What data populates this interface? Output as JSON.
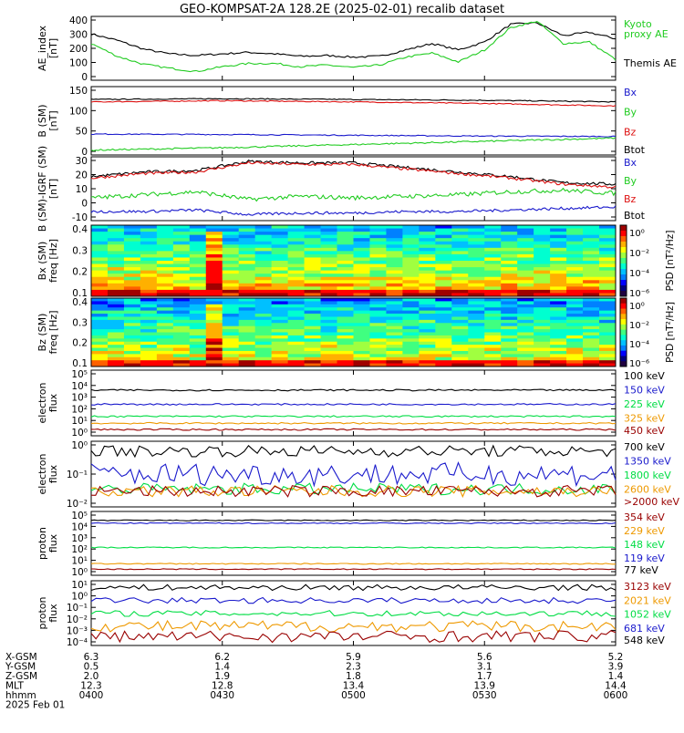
{
  "title": "GEO-KOMPSAT-2A 128.2E (2025-02-01) recalib dataset",
  "colors": {
    "black": "#000000",
    "green": "#22cc22",
    "blue": "#1a1acc",
    "red": "#dd1111",
    "orange": "#ee9900",
    "darkred": "#990000",
    "brightgreen": "#00dd44"
  },
  "panels": [
    {
      "id": "ae",
      "ylabel": [
        "AE_index",
        "[nT]"
      ],
      "ticks": [
        "400",
        "300",
        "200",
        "100",
        "0"
      ],
      "legend": [
        {
          "text": "Kyoto",
          "color": "green"
        },
        {
          "text": "proxy AE",
          "color": "green"
        },
        {
          "text": "Themis AE",
          "color": "black"
        }
      ]
    },
    {
      "id": "bsm",
      "ylabel": [
        "B (SM)",
        "[nT]"
      ],
      "ticks": [
        "150",
        "100",
        "50",
        "0"
      ],
      "legend": [
        {
          "text": "Bx",
          "color": "blue"
        },
        {
          "text": "By",
          "color": "green"
        },
        {
          "text": "Bz",
          "color": "red"
        },
        {
          "text": "Btot",
          "color": "black"
        }
      ]
    },
    {
      "id": "bigrf",
      "ylabel": [
        "B (SM)-IGRF (SM)",
        "[nT]"
      ],
      "ticks": [
        "30",
        "20",
        "10",
        "0",
        "-10"
      ],
      "legend": [
        {
          "text": "Bx",
          "color": "blue"
        },
        {
          "text": "By",
          "color": "green"
        },
        {
          "text": "Bz",
          "color": "red"
        },
        {
          "text": "Btot",
          "color": "black"
        }
      ]
    },
    {
      "id": "specbx",
      "ylabel": [
        "Bx (SM)",
        "freq [Hz]"
      ],
      "ticks": [
        "0.4",
        "0.3",
        "0.2",
        "0.1"
      ],
      "cbar_label": "PSD [nT²/Hz]",
      "cbar_ticks": [
        "10⁰",
        "10⁻²",
        "10⁻⁴",
        "10⁻⁶"
      ]
    },
    {
      "id": "specbz",
      "ylabel": [
        "Bz (SM)",
        "freq [Hz]"
      ],
      "ticks": [
        "0.4",
        "0.3",
        "0.2",
        "0.1"
      ],
      "cbar_label": "PSD [nT²/Hz]",
      "cbar_ticks": [
        "10⁰",
        "10⁻²",
        "10⁻⁴",
        "10⁻⁶"
      ]
    },
    {
      "id": "elow",
      "ylabel": [
        "electron",
        "flux"
      ],
      "ticks": [
        "10⁵",
        "10⁴",
        "10³",
        "10²",
        "10¹",
        "10⁰"
      ],
      "legend": [
        {
          "text": "100 keV",
          "color": "black"
        },
        {
          "text": "150 keV",
          "color": "blue"
        },
        {
          "text": "225 keV",
          "color": "brightgreen"
        },
        {
          "text": "325 keV",
          "color": "orange"
        },
        {
          "text": "450 keV",
          "color": "darkred"
        }
      ]
    },
    {
      "id": "ehigh",
      "ylabel": [
        "electron",
        "flux"
      ],
      "ticks": [
        "10⁰",
        "10⁻¹",
        "10⁻²"
      ],
      "legend": [
        {
          "text": "700 keV",
          "color": "black"
        },
        {
          "text": "1350 keV",
          "color": "blue"
        },
        {
          "text": "1800 keV",
          "color": "brightgreen"
        },
        {
          "text": "2600 keV",
          "color": "orange"
        },
        {
          "text": ">2000 keV",
          "color": "darkred"
        }
      ]
    },
    {
      "id": "plow",
      "ylabel": [
        "proton",
        "flux"
      ],
      "ticks": [
        "10⁵",
        "10⁴",
        "10³",
        "10²",
        "10¹",
        "10⁰"
      ],
      "legend": [
        {
          "text": "354 keV",
          "color": "darkred"
        },
        {
          "text": "229 keV",
          "color": "orange"
        },
        {
          "text": "148 keV",
          "color": "brightgreen"
        },
        {
          "text": "119 keV",
          "color": "blue"
        },
        {
          "text": "77 keV",
          "color": "black"
        }
      ]
    },
    {
      "id": "phigh",
      "ylabel": [
        "proton",
        "flux"
      ],
      "ticks": [
        "10¹",
        "10⁰",
        "10⁻¹",
        "10⁻²",
        "10⁻³",
        "10⁻⁴"
      ],
      "legend": [
        {
          "text": "3123 keV",
          "color": "darkred"
        },
        {
          "text": "2021 keV",
          "color": "orange"
        },
        {
          "text": "1052 keV",
          "color": "brightgreen"
        },
        {
          "text": "681 keV",
          "color": "blue"
        },
        {
          "text": "548 keV",
          "color": "black"
        }
      ]
    }
  ],
  "footer": {
    "rows": [
      {
        "label": "X-GSM",
        "values": [
          "6.3",
          "6.2",
          "5.9",
          "5.6",
          "5.2"
        ]
      },
      {
        "label": "Y-GSM",
        "values": [
          "0.5",
          "1.4",
          "2.3",
          "3.1",
          "3.9"
        ]
      },
      {
        "label": "Z-GSM",
        "values": [
          "2.0",
          "1.9",
          "1.8",
          "1.7",
          "1.4"
        ]
      },
      {
        "label": "MLT",
        "values": [
          "12.3",
          "12.8",
          "13.4",
          "13.9",
          "14.4"
        ]
      },
      {
        "label": "hhmm",
        "values": [
          "0400",
          "0430",
          "0500",
          "0530",
          "0600"
        ]
      }
    ],
    "date": "2025 Feb 01"
  },
  "chart_data": {
    "type": "line",
    "title": "GEO-KOMPSAT-2A 128.2E (2025-02-01) recalib dataset",
    "x_ticks": [
      "0400",
      "0430",
      "0500",
      "0530",
      "0600"
    ],
    "panels": [
      {
        "id": "ae",
        "ylim": [
          0,
          400
        ],
        "scale": "linear",
        "series": [
          {
            "name": "Themis AE",
            "color": "black",
            "x": [
              4.0,
              4.1,
              4.2,
              4.3,
              4.4,
              4.5,
              4.6,
              4.7,
              4.8,
              4.9,
              5.0,
              5.1,
              5.2,
              5.3,
              5.4,
              5.5,
              5.6,
              5.7,
              5.8,
              5.9,
              6.0
            ],
            "y": [
              290,
              250,
              195,
              165,
              155,
              165,
              175,
              165,
              150,
              155,
              145,
              150,
              190,
              230,
              190,
              240,
              350,
              360,
              280,
              300,
              260
            ]
          },
          {
            "name": "proxy AE",
            "color": "green",
            "x": [
              4.0,
              4.1,
              4.2,
              4.3,
              4.4,
              4.5,
              4.6,
              4.7,
              4.8,
              4.9,
              5.0,
              5.1,
              5.2,
              5.3,
              5.4,
              5.5,
              5.6,
              5.7,
              5.8,
              5.9,
              6.0
            ],
            "y": [
              230,
              150,
              100,
              75,
              55,
              85,
              105,
              105,
              85,
              95,
              80,
              95,
              145,
              170,
              115,
              190,
              330,
              370,
              230,
              240,
              130
            ]
          }
        ]
      },
      {
        "id": "bsm",
        "ylim": [
          -10,
          160
        ],
        "scale": "linear",
        "series": [
          {
            "name": "Btot",
            "color": "black",
            "x": [
              4.0,
              4.5,
              5.0,
              5.5,
              6.0
            ],
            "y": [
              128,
              130,
              128,
              126,
              122
            ]
          },
          {
            "name": "Bz",
            "color": "red",
            "x": [
              4.0,
              4.5,
              5.0,
              5.5,
              6.0
            ],
            "y": [
              122,
              125,
              122,
              118,
              112
            ]
          },
          {
            "name": "Bx",
            "color": "blue",
            "x": [
              4.0,
              4.5,
              5.0,
              5.5,
              6.0
            ],
            "y": [
              42,
              41,
              39,
              37,
              36
            ]
          },
          {
            "name": "By",
            "color": "green",
            "x": [
              4.0,
              4.5,
              5.0,
              5.5,
              6.0
            ],
            "y": [
              2,
              8,
              16,
              24,
              32
            ]
          }
        ]
      },
      {
        "id": "bigrf",
        "ylim": [
          -10,
          32
        ],
        "scale": "linear",
        "series": [
          {
            "name": "Btot",
            "color": "black",
            "x": [
              4.0,
              4.2,
              4.4,
              4.6,
              4.8,
              5.0,
              5.2,
              5.4,
              5.6,
              5.8,
              6.0
            ],
            "y": [
              19,
              22,
              23,
              29,
              28,
              28,
              25,
              22,
              19,
              15,
              14
            ]
          },
          {
            "name": "Bz",
            "color": "red",
            "x": [
              4.0,
              4.2,
              4.4,
              4.6,
              4.8,
              5.0,
              5.2,
              5.4,
              5.6,
              5.8,
              6.0
            ],
            "y": [
              18,
              21,
              22,
              28,
              27,
              27,
              24,
              21,
              18,
              14,
              12
            ]
          },
          {
            "name": "By",
            "color": "green",
            "x": [
              4.0,
              4.2,
              4.4,
              4.6,
              4.8,
              5.0,
              5.2,
              5.4,
              5.6,
              5.8,
              6.0
            ],
            "y": [
              5,
              7,
              9,
              4,
              6,
              5,
              6,
              7,
              9,
              10,
              8
            ]
          },
          {
            "name": "Bx",
            "color": "blue",
            "x": [
              4.0,
              4.2,
              4.4,
              4.6,
              4.8,
              5.0,
              5.2,
              5.4,
              5.6,
              5.8,
              6.0
            ],
            "y": [
              -4,
              -4,
              -3,
              -6,
              -5,
              -5,
              -4,
              -4,
              -3,
              -2,
              -1
            ]
          }
        ]
      },
      {
        "id": "elow",
        "ylim": [
          1,
          100000
        ],
        "scale": "log",
        "series": [
          {
            "name": "100 keV",
            "color": "black",
            "x": [
              4.0,
              6.0
            ],
            "y": [
              3000,
              3000
            ]
          },
          {
            "name": "150 keV",
            "color": "blue",
            "x": [
              4.0,
              6.0
            ],
            "y": [
              250,
              250
            ]
          },
          {
            "name": "225 keV",
            "color": "brightgreen",
            "x": [
              4.0,
              6.0
            ],
            "y": [
              30,
              30
            ]
          },
          {
            "name": "325 keV",
            "color": "orange",
            "x": [
              4.0,
              6.0
            ],
            "y": [
              9,
              9
            ]
          },
          {
            "name": "450 keV",
            "color": "darkred",
            "x": [
              4.0,
              6.0
            ],
            "y": [
              3,
              3
            ]
          }
        ]
      },
      {
        "id": "ehigh",
        "ylim": [
          0.01,
          1
        ],
        "scale": "log",
        "series": [
          {
            "name": "700 keV",
            "color": "black",
            "x": [
              4.0,
              6.0
            ],
            "y": [
              0.5,
              0.5
            ]
          },
          {
            "name": "1350 keV",
            "color": "blue",
            "x": [
              4.0,
              6.0
            ],
            "y": [
              0.1,
              0.1
            ]
          },
          {
            "name": "1800 keV",
            "color": "brightgreen",
            "x": [
              4.0,
              6.0
            ],
            "y": [
              0.035,
              0.035
            ]
          },
          {
            "name": "2600 keV",
            "color": "orange",
            "x": [
              4.0,
              6.0
            ],
            "y": [
              0.03,
              0.03
            ]
          },
          {
            "name": ">2000 keV",
            "color": "darkred",
            "x": [
              4.0,
              6.0
            ],
            "y": [
              0.03,
              0.03
            ]
          }
        ]
      },
      {
        "id": "plow",
        "ylim": [
          1,
          100000
        ],
        "scale": "log",
        "series": [
          {
            "name": "77 keV",
            "color": "black",
            "x": [
              4.0,
              6.0
            ],
            "y": [
              20000,
              20000
            ]
          },
          {
            "name": "119 keV",
            "color": "blue",
            "x": [
              4.0,
              6.0
            ],
            "y": [
              12000,
              12000
            ]
          },
          {
            "name": "148 keV",
            "color": "brightgreen",
            "x": [
              4.0,
              6.0
            ],
            "y": [
              150,
              150
            ]
          },
          {
            "name": "229 keV",
            "color": "orange",
            "x": [
              4.0,
              6.0
            ],
            "y": [
              8,
              8
            ]
          },
          {
            "name": "354 keV",
            "color": "darkred",
            "x": [
              4.0,
              6.0
            ],
            "y": [
              3,
              3
            ]
          }
        ]
      },
      {
        "id": "phigh",
        "ylim": [
          0.0001,
          10
        ],
        "scale": "log",
        "series": [
          {
            "name": "548 keV",
            "color": "black",
            "x": [
              4.0,
              6.0
            ],
            "y": [
              3,
              3
            ]
          },
          {
            "name": "681 keV",
            "color": "blue",
            "x": [
              4.0,
              6.0
            ],
            "y": [
              0.3,
              0.3
            ]
          },
          {
            "name": "1052 keV",
            "color": "brightgreen",
            "x": [
              4.0,
              6.0
            ],
            "y": [
              0.03,
              0.03
            ]
          },
          {
            "name": "2021 keV",
            "color": "orange",
            "x": [
              4.0,
              6.0
            ],
            "y": [
              0.003,
              0.003
            ]
          },
          {
            "name": "3123 keV",
            "color": "darkred",
            "x": [
              4.0,
              6.0
            ],
            "y": [
              0.0005,
              0.0005
            ]
          }
        ]
      }
    ]
  }
}
